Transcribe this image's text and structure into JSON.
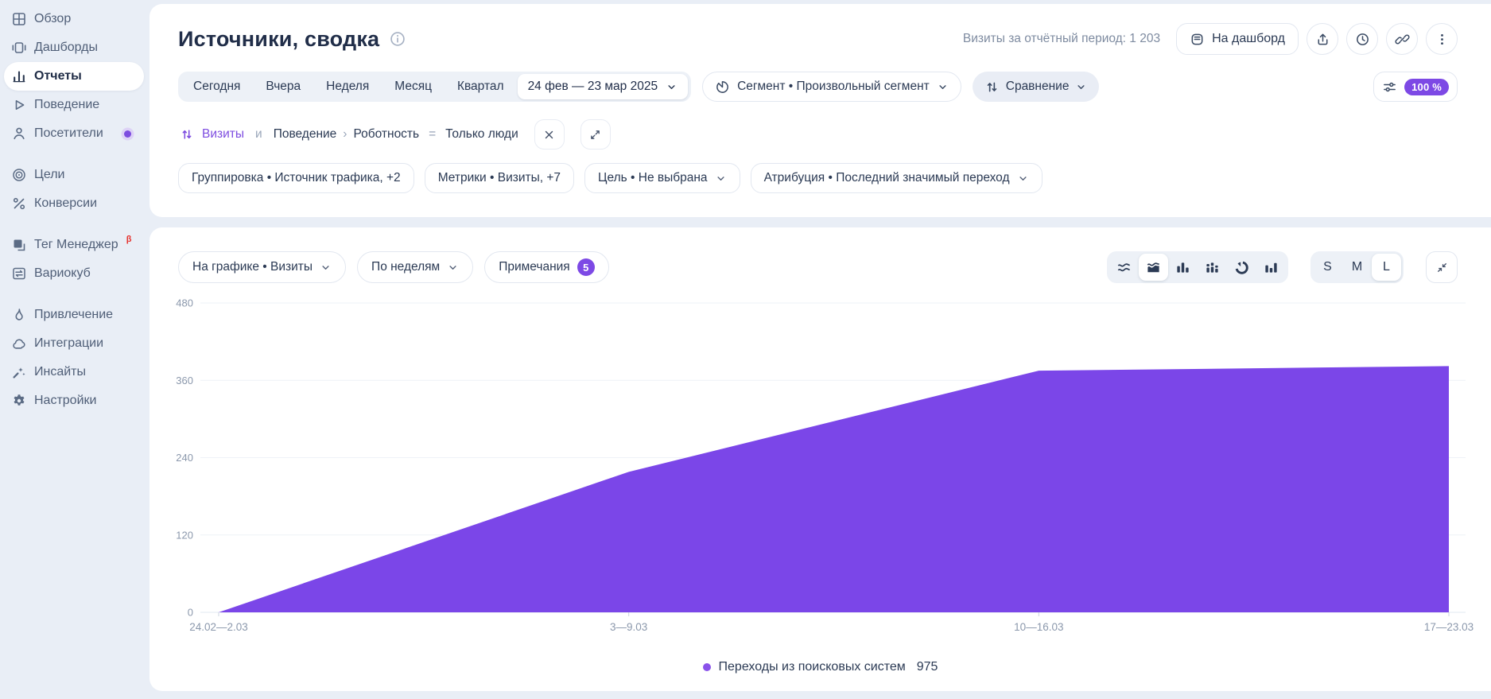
{
  "colors": {
    "accent_purple": "#7b46e8",
    "legend_dot": "#8a52ea",
    "badge_purple": "#7d49e5",
    "beta_red": "#e5322e",
    "page_bg": "#e9eef6",
    "text_dark": "#22304a",
    "text_gray": "#8b97ab"
  },
  "sidebar": {
    "groups": [
      {
        "items": [
          {
            "id": "overview",
            "label": "Обзор",
            "icon": "grid-icon",
            "active": false
          },
          {
            "id": "dashboards",
            "label": "Дашборды",
            "icon": "dashboards-icon",
            "active": false
          },
          {
            "id": "reports",
            "label": "Отчеты",
            "icon": "reports-icon",
            "active": true
          },
          {
            "id": "behavior",
            "label": "Поведение",
            "icon": "play-icon",
            "active": false
          },
          {
            "id": "visitors",
            "label": "Посетители",
            "icon": "person-icon",
            "active": false,
            "dot": true
          }
        ]
      },
      {
        "items": [
          {
            "id": "goals",
            "label": "Цели",
            "icon": "target-icon",
            "active": false
          },
          {
            "id": "conversions",
            "label": "Конверсии",
            "icon": "percent-icon",
            "active": false
          }
        ]
      },
      {
        "items": [
          {
            "id": "tag-manager",
            "label": "Тег Менеджер",
            "icon": "tag-manager-icon",
            "active": false,
            "beta": "β"
          },
          {
            "id": "variocube",
            "label": "Вариокуб",
            "icon": "variocube-icon",
            "active": false
          }
        ]
      },
      {
        "items": [
          {
            "id": "acquisition",
            "label": "Привлечение",
            "icon": "flame-icon",
            "active": false
          },
          {
            "id": "integrations",
            "label": "Интеграции",
            "icon": "puzzle-icon",
            "active": false
          },
          {
            "id": "insights",
            "label": "Инсайты",
            "icon": "insights-icon",
            "active": false
          },
          {
            "id": "settings",
            "label": "Настройки",
            "icon": "gear-icon",
            "active": false
          }
        ]
      }
    ]
  },
  "header": {
    "title": "Источники, сводка",
    "visits_summary": "Визиты за отчётный период: 1 203",
    "to_dashboard_label": "На дашборд",
    "actions": [
      {
        "name": "share-button",
        "icon": "share-icon"
      },
      {
        "name": "history-button",
        "icon": "clock-icon"
      },
      {
        "name": "copy-link-button",
        "icon": "link-icon"
      },
      {
        "name": "more-menu-button",
        "icon": "kebab-icon"
      }
    ]
  },
  "period_bar": {
    "presets": [
      {
        "id": "today",
        "label": "Сегодня"
      },
      {
        "id": "yesterday",
        "label": "Вчера"
      },
      {
        "id": "week",
        "label": "Неделя"
      },
      {
        "id": "month",
        "label": "Месяц"
      },
      {
        "id": "quarter",
        "label": "Квартал"
      }
    ],
    "date_range": "24 фев — 23 мар 2025",
    "segment_label": "Сегмент • Произвольный сегмент",
    "compare_label": "Сравнение",
    "sampling_value": "100 %"
  },
  "segment_row": {
    "metric": "Визиты",
    "conjunction": "и",
    "path_parent": "Поведение",
    "separator": "›",
    "path_child": "Роботность",
    "operator": "=",
    "value": "Только люди"
  },
  "filters": [
    {
      "id": "grouping",
      "label": "Группировка • Источник трафика, +2",
      "chevron": false
    },
    {
      "id": "metrics",
      "label": "Метрики • Визиты, +7",
      "chevron": false
    },
    {
      "id": "goal",
      "label": "Цель • Не выбрана",
      "chevron": true
    },
    {
      "id": "attribution",
      "label": "Атрибуция • Последний значимый переход",
      "chevron": true
    }
  ],
  "chart_controls": {
    "metric_select": "На графике • Визиты",
    "granularity_select": "По неделям",
    "notes_label": "Примечания",
    "notes_count": "5",
    "chart_types": [
      {
        "id": "lines",
        "icon": "line-chart-icon",
        "active": false
      },
      {
        "id": "areas",
        "icon": "area-chart-icon",
        "active": true
      },
      {
        "id": "bars",
        "icon": "bar-chart-icon",
        "active": false
      },
      {
        "id": "stacked-bars",
        "icon": "stacked-bar-icon",
        "active": false
      },
      {
        "id": "donut",
        "icon": "donut-chart-icon",
        "active": false
      },
      {
        "id": "columns",
        "icon": "column-chart-icon",
        "active": false
      }
    ],
    "sizes": [
      {
        "label": "S",
        "active": false
      },
      {
        "label": "M",
        "active": false
      },
      {
        "label": "L",
        "active": true
      }
    ]
  },
  "chart_data": {
    "type": "area",
    "title": "",
    "x": [
      "24.02—2.03",
      "3—9.03",
      "10—16.03",
      "17—23.03"
    ],
    "series": [
      {
        "name": "Переходы из поисковых систем",
        "values": [
          0,
          218,
          375,
          382
        ],
        "total": 975,
        "color": "#7b46e8"
      }
    ],
    "ylim": [
      0,
      480
    ],
    "yticks": [
      0,
      120,
      240,
      360,
      480
    ],
    "grid": true,
    "legend_position": "bottom"
  },
  "legend": {
    "label": "Переходы из поисковых систем",
    "value": "975"
  }
}
